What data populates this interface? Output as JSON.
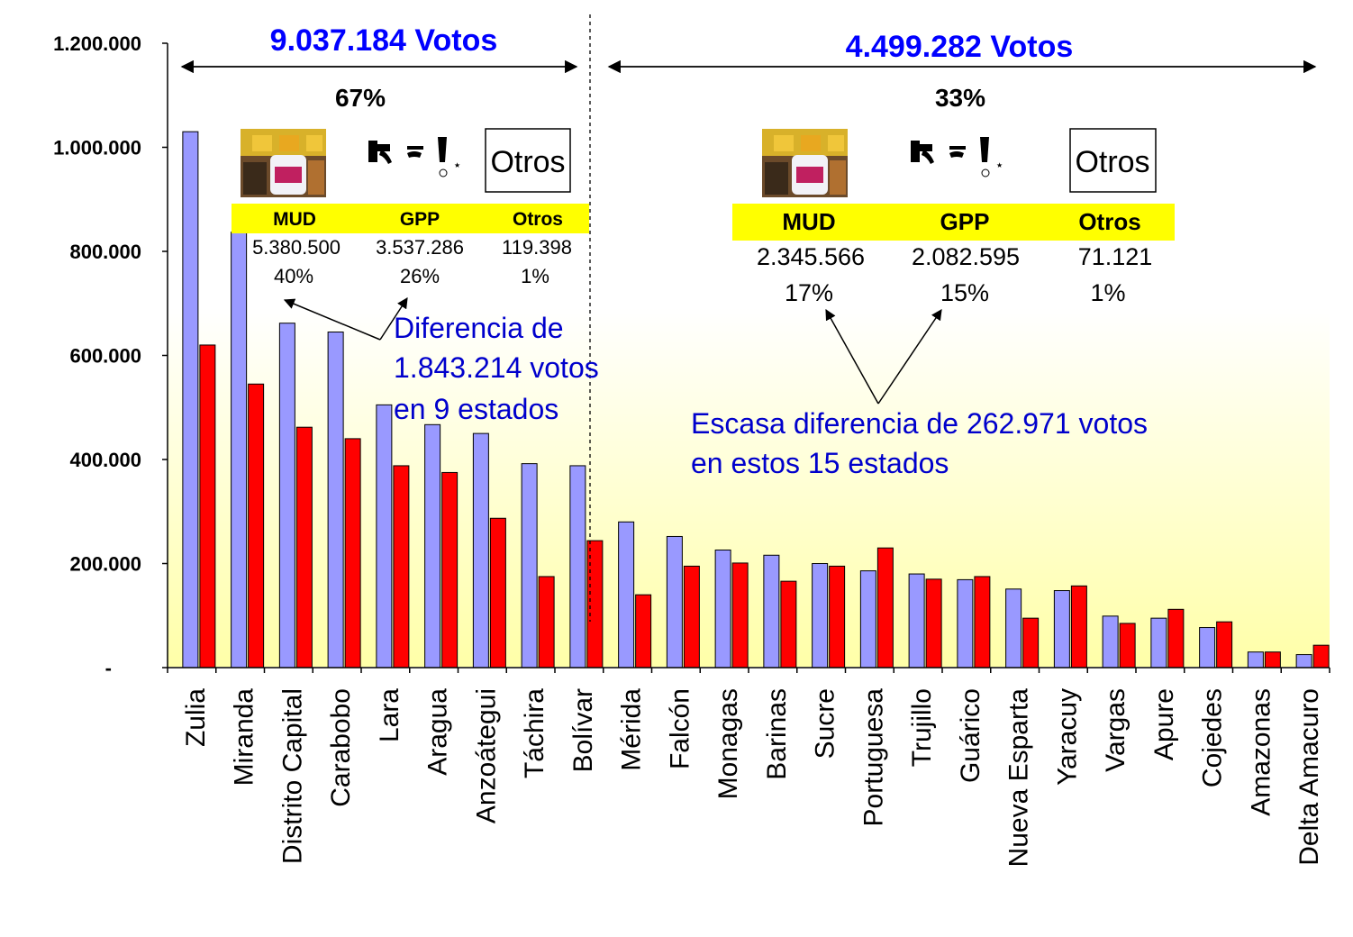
{
  "chart_data": {
    "type": "bar",
    "categories": [
      "Zulia",
      "Miranda",
      "Distrito Capital",
      "Carabobo",
      "Lara",
      "Aragua",
      "Anzoátegui",
      "Táchira",
      "Bolívar",
      "Mérida",
      "Falcón",
      "Monagas",
      "Barinas",
      "Sucre",
      "Portuguesa",
      "Trujillo",
      "Guárico",
      "Nueva Esparta",
      "Yaracuy",
      "Vargas",
      "Apure",
      "Cojedes",
      "Amazonas",
      "Delta Amacuro"
    ],
    "series": [
      {
        "values": [
          1030000,
          837000,
          662000,
          645000,
          505000,
          467000,
          450000,
          392000,
          388000,
          280000,
          252000,
          226000,
          216000,
          200000,
          186000,
          180000,
          169000,
          151000,
          148000,
          99000,
          95000,
          77000,
          30000,
          25000
        ]
      },
      {
        "values": [
          620000,
          545000,
          462000,
          440000,
          388000,
          375000,
          287000,
          175000,
          244000,
          140000,
          195000,
          201000,
          166000,
          195000,
          230000,
          170000,
          175000,
          95000,
          157000,
          85000,
          112000,
          88000,
          30000,
          43000
        ]
      }
    ],
    "ylim": [
      0,
      1200000
    ],
    "yticks": [
      "-",
      "200.000",
      "400.000",
      "600.000",
      "800.000",
      "1.000.000",
      "1.200.000"
    ],
    "colors": {
      "series1": "#9999ff",
      "series2": "#ff0000"
    },
    "annotations": {
      "left": {
        "total": "9.037.184 Votos",
        "pct": "67%",
        "box_label": "Otros",
        "headers": [
          "MUD",
          "GPP",
          "Otros"
        ],
        "values": [
          "5.380.500",
          "3.537.286",
          "119.398"
        ],
        "pcts": [
          "40%",
          "26%",
          "1%"
        ],
        "note": [
          "Diferencia de",
          "1.843.214 votos",
          "en 9 estados"
        ]
      },
      "right": {
        "total": "4.499.282 Votos",
        "pct": "33%",
        "box_label": "Otros",
        "headers": [
          "MUD",
          "GPP",
          "Otros"
        ],
        "values": [
          "2.345.566",
          "2.082.595",
          "71.121"
        ],
        "pcts": [
          "17%",
          "15%",
          "1%"
        ],
        "note": [
          "Escasa diferencia de 262.971 votos",
          "en estos 15 estados"
        ]
      }
    },
    "accent_colors": {
      "total_text": "#0000ff",
      "note_text": "#0000cc",
      "header_bg": "#ffff00"
    }
  }
}
